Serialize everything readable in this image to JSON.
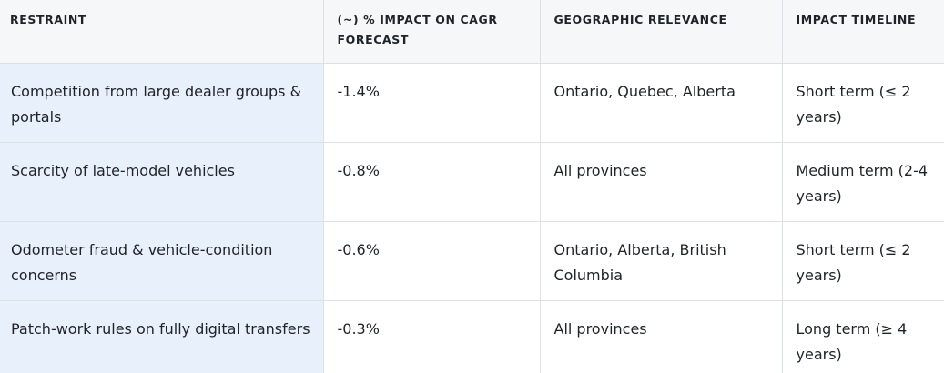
{
  "table": {
    "headers": [
      "RESTRAINT",
      "(~) % IMPACT ON CAGR FORECAST",
      "GEOGRAPHIC RELEVANCE",
      "IMPACT TIMELINE"
    ],
    "rows": [
      [
        "Competition from large dealer groups & portals",
        "-1.4%",
        "Ontario, Quebec, Alberta",
        "Short term (≤ 2 years)"
      ],
      [
        "Scarcity of late-model vehicles",
        "-0.8%",
        "All provinces",
        "Medium term (2-4 years)"
      ],
      [
        "Odometer fraud & vehicle-condition concerns",
        "-0.6%",
        "Ontario, Alberta, British Columbia",
        "Short term (≤ 2 years)"
      ],
      [
        "Patch-work rules on fully digital transfers",
        "-0.3%",
        "All provinces",
        "Long term (≥ 4 years)"
      ]
    ]
  }
}
